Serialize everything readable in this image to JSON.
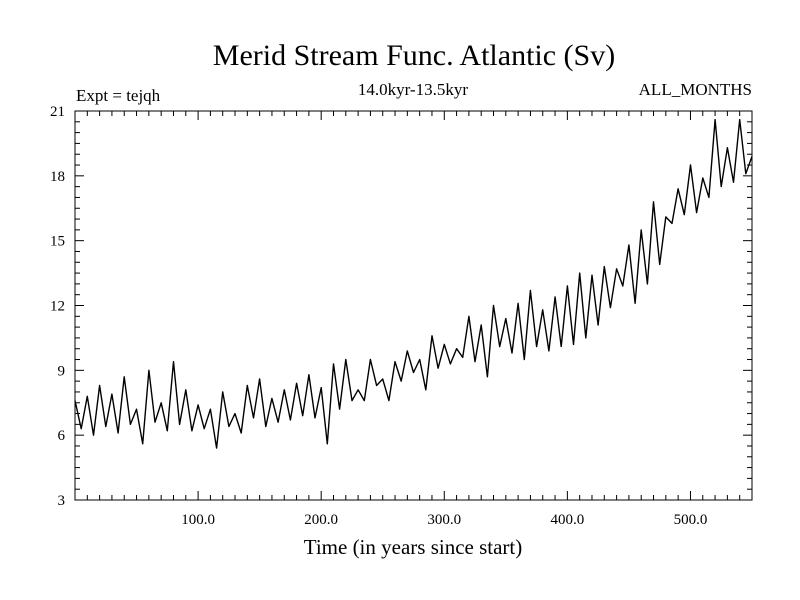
{
  "chart_data": {
    "type": "line",
    "title": "Merid Stream Func. Atlantic (Sv)",
    "subtitle": "14.0kyr-13.5kyr",
    "left_annotation": "Expt = tejqh",
    "right_annotation": "ALL_MONTHS",
    "xlabel": "Time (in years since start)",
    "ylabel": "",
    "xlim": [
      0,
      550
    ],
    "ylim": [
      3,
      21
    ],
    "x_ticks": [
      100,
      200,
      300,
      400,
      500
    ],
    "x_tick_labels": [
      "100.0",
      "200.0",
      "300.0",
      "400.0",
      "500.0"
    ],
    "y_ticks": [
      3,
      6,
      9,
      12,
      15,
      18,
      21
    ],
    "y_tick_labels": [
      "3",
      "6",
      "9",
      "12",
      "15",
      "18",
      "21"
    ],
    "grid": false,
    "series": [
      {
        "name": "Merid Stream Func.",
        "x": [
          0,
          5,
          10,
          15,
          20,
          25,
          30,
          35,
          40,
          45,
          50,
          55,
          60,
          65,
          70,
          75,
          80,
          85,
          90,
          95,
          100,
          105,
          110,
          115,
          120,
          125,
          130,
          135,
          140,
          145,
          150,
          155,
          160,
          165,
          170,
          175,
          180,
          185,
          190,
          195,
          200,
          205,
          210,
          215,
          220,
          225,
          230,
          235,
          240,
          245,
          250,
          255,
          260,
          265,
          270,
          275,
          280,
          285,
          290,
          295,
          300,
          305,
          310,
          315,
          320,
          325,
          330,
          335,
          340,
          345,
          350,
          355,
          360,
          365,
          370,
          375,
          380,
          385,
          390,
          395,
          400,
          405,
          410,
          415,
          420,
          425,
          430,
          435,
          440,
          445,
          450,
          455,
          460,
          465,
          470,
          475,
          480,
          485,
          490,
          495,
          500,
          505,
          510,
          515,
          520,
          525,
          530,
          535,
          540,
          545,
          550
        ],
        "values": [
          7.6,
          6.3,
          7.8,
          6.0,
          8.3,
          6.4,
          7.9,
          6.1,
          8.7,
          6.5,
          7.2,
          5.6,
          9.0,
          6.6,
          7.5,
          6.2,
          9.4,
          6.5,
          8.1,
          6.2,
          7.4,
          6.3,
          7.2,
          5.4,
          8.0,
          6.4,
          7.0,
          6.1,
          8.3,
          6.8,
          8.6,
          6.4,
          7.7,
          6.6,
          8.1,
          6.7,
          8.4,
          6.9,
          8.8,
          6.8,
          8.2,
          5.6,
          9.3,
          7.2,
          9.5,
          7.6,
          8.1,
          7.6,
          9.5,
          8.3,
          8.6,
          7.6,
          9.4,
          8.5,
          9.9,
          8.9,
          9.5,
          8.1,
          10.6,
          9.1,
          10.2,
          9.3,
          10.0,
          9.6,
          11.5,
          9.4,
          11.1,
          8.7,
          12.0,
          10.1,
          11.4,
          9.8,
          12.1,
          9.5,
          12.7,
          10.1,
          11.8,
          9.9,
          12.4,
          10.1,
          12.9,
          10.2,
          13.5,
          10.5,
          13.4,
          11.1,
          13.8,
          11.9,
          13.7,
          12.9,
          14.8,
          12.1,
          15.5,
          13.0,
          16.8,
          13.9,
          16.1,
          15.8,
          17.4,
          16.2,
          18.5,
          16.3,
          17.9,
          17.0,
          20.6,
          17.5,
          19.3,
          17.7,
          20.6,
          18.1,
          18.9
        ]
      }
    ]
  }
}
